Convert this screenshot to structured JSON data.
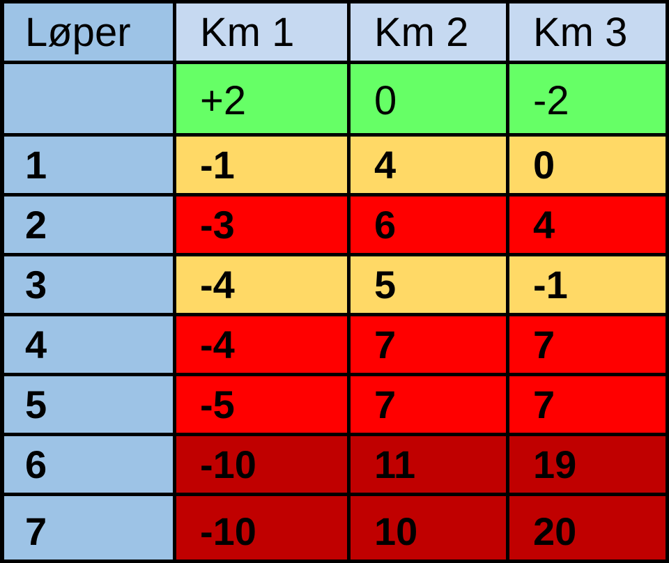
{
  "table": {
    "headers": [
      "Løper",
      "Km 1",
      "Km 2",
      "Km 3"
    ],
    "reference": {
      "label": "",
      "values": [
        "+2",
        "0",
        "-2"
      ],
      "color": "#66ff66"
    },
    "rows": [
      {
        "runner": "1",
        "values": [
          "-1",
          "4",
          "0"
        ],
        "color": "#ffd966"
      },
      {
        "runner": "2",
        "values": [
          "-3",
          "6",
          "4"
        ],
        "color": "#ff0000"
      },
      {
        "runner": "3",
        "values": [
          "-4",
          "5",
          "-1"
        ],
        "color": "#ffd966"
      },
      {
        "runner": "4",
        "values": [
          "-4",
          "7",
          "7"
        ],
        "color": "#ff0000"
      },
      {
        "runner": "5",
        "values": [
          "-5",
          "7",
          "7"
        ],
        "color": "#ff0000"
      },
      {
        "runner": "6",
        "values": [
          "-10",
          "11",
          "19"
        ],
        "color": "#c00000"
      },
      {
        "runner": "7",
        "values": [
          "-10",
          "10",
          "20"
        ],
        "color": "#c00000"
      }
    ],
    "header_color": "#c6d9f1",
    "first_column_color": "#9dc3e6"
  }
}
